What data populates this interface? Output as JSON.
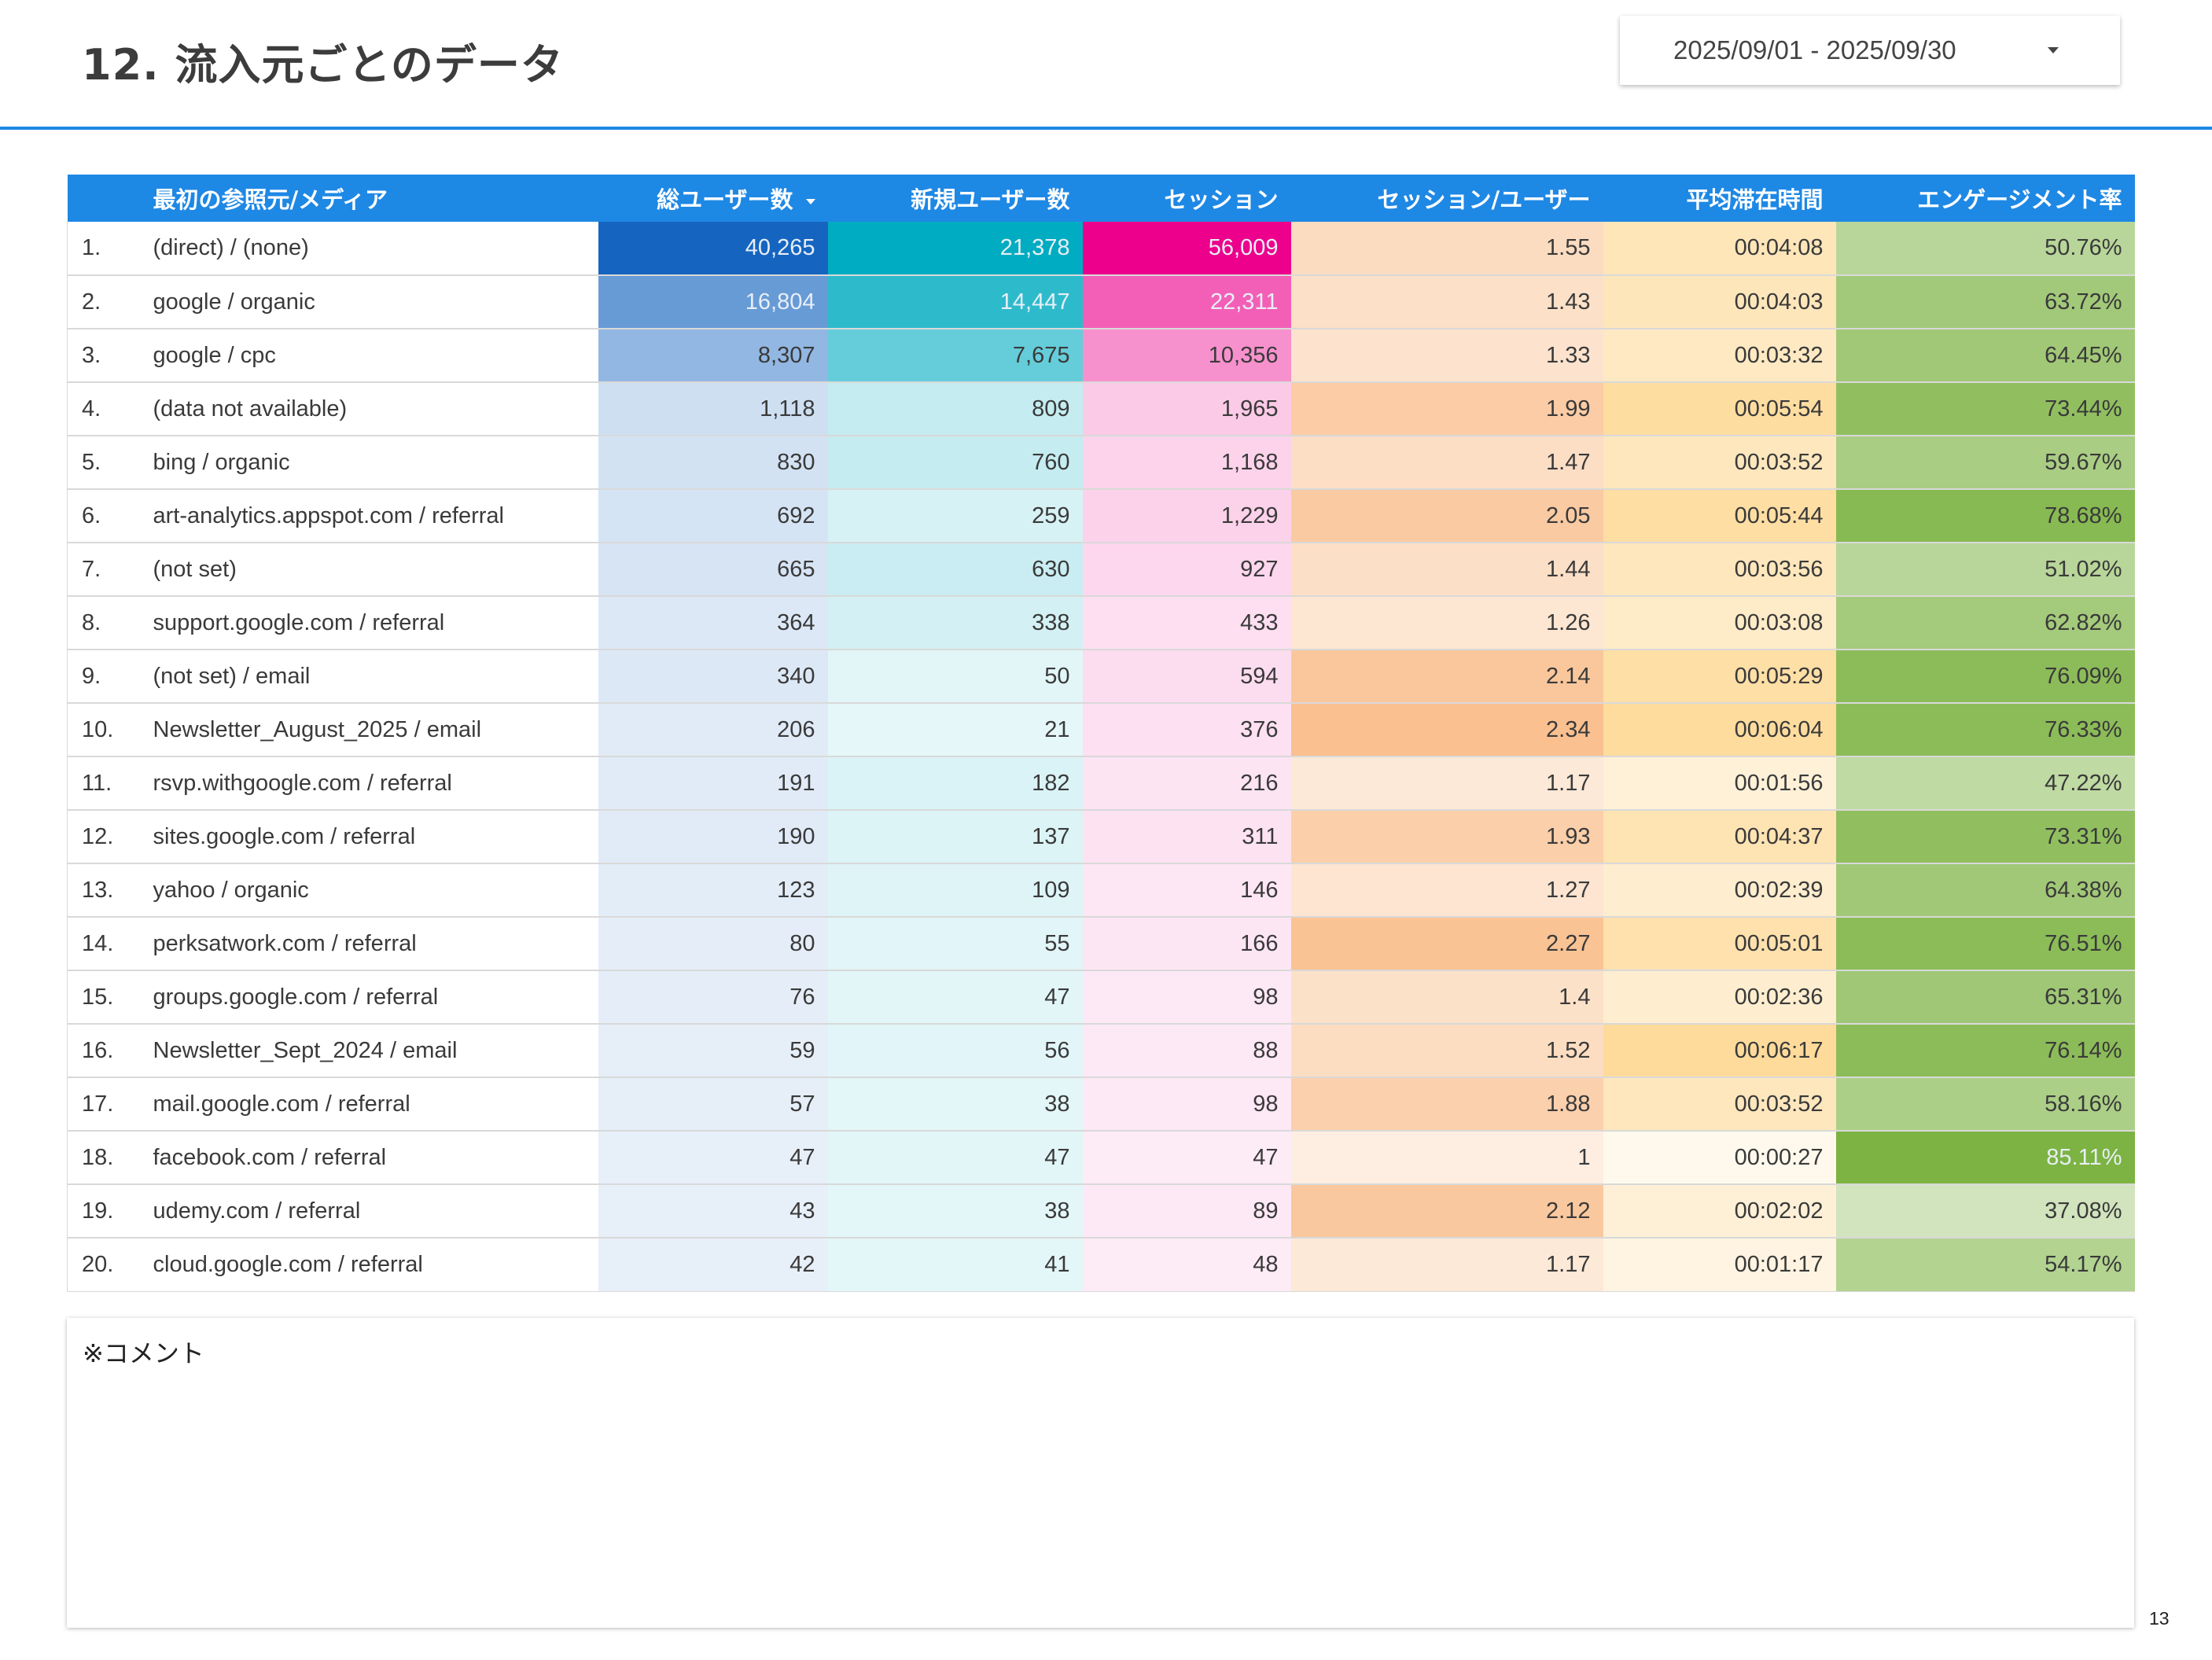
{
  "header": {
    "title": "12.  流入元ごとのデータ",
    "accent_color": "#1e88e5"
  },
  "date_range": {
    "value": "2025/09/01 - 2025/09/30",
    "icon": "chevron-down-icon"
  },
  "table": {
    "header_color": "#1e88e5",
    "sort": {
      "column": "総ユーザー数",
      "direction": "descending",
      "icon": "sort-down-icon"
    },
    "columns": [
      "最初の参照元/メディア",
      "総ユーザー数",
      "新規ユーザー数",
      "セッション",
      "セッション/ユーザー",
      "平均滞在時間",
      "エンゲージメント率"
    ],
    "heatmap_colors": {
      "total_users": "#1565c0",
      "new_users": "#00acc1",
      "sessions": "#ec008c",
      "sessions_per_user": "#f7a35c",
      "avg_time": "#fdc96a",
      "engagement_rate": "#7cb342"
    },
    "rows": [
      {
        "idx": "1.",
        "source": "(direct) / (none)",
        "total_users": "40,265",
        "new_users": "21,378",
        "sessions": "56,009",
        "sessions_per_user": "1.55",
        "avg_time": "00:04:08",
        "engagement_rate": "50.76%"
      },
      {
        "idx": "2.",
        "source": "google / organic",
        "total_users": "16,804",
        "new_users": "14,447",
        "sessions": "22,311",
        "sessions_per_user": "1.43",
        "avg_time": "00:04:03",
        "engagement_rate": "63.72%"
      },
      {
        "idx": "3.",
        "source": "google / cpc",
        "total_users": "8,307",
        "new_users": "7,675",
        "sessions": "10,356",
        "sessions_per_user": "1.33",
        "avg_time": "00:03:32",
        "engagement_rate": "64.45%"
      },
      {
        "idx": "4.",
        "source": "(data not available)",
        "total_users": "1,118",
        "new_users": "809",
        "sessions": "1,965",
        "sessions_per_user": "1.99",
        "avg_time": "00:05:54",
        "engagement_rate": "73.44%"
      },
      {
        "idx": "5.",
        "source": "bing / organic",
        "total_users": "830",
        "new_users": "760",
        "sessions": "1,168",
        "sessions_per_user": "1.47",
        "avg_time": "00:03:52",
        "engagement_rate": "59.67%"
      },
      {
        "idx": "6.",
        "source": "art-analytics.appspot.com / referral",
        "total_users": "692",
        "new_users": "259",
        "sessions": "1,229",
        "sessions_per_user": "2.05",
        "avg_time": "00:05:44",
        "engagement_rate": "78.68%"
      },
      {
        "idx": "7.",
        "source": "(not set)",
        "total_users": "665",
        "new_users": "630",
        "sessions": "927",
        "sessions_per_user": "1.44",
        "avg_time": "00:03:56",
        "engagement_rate": "51.02%"
      },
      {
        "idx": "8.",
        "source": "support.google.com / referral",
        "total_users": "364",
        "new_users": "338",
        "sessions": "433",
        "sessions_per_user": "1.26",
        "avg_time": "00:03:08",
        "engagement_rate": "62.82%"
      },
      {
        "idx": "9.",
        "source": "(not set) / email",
        "total_users": "340",
        "new_users": "50",
        "sessions": "594",
        "sessions_per_user": "2.14",
        "avg_time": "00:05:29",
        "engagement_rate": "76.09%"
      },
      {
        "idx": "10.",
        "source": "Newsletter_August_2025 / email",
        "total_users": "206",
        "new_users": "21",
        "sessions": "376",
        "sessions_per_user": "2.34",
        "avg_time": "00:06:04",
        "engagement_rate": "76.33%"
      },
      {
        "idx": "11.",
        "source": "rsvp.withgoogle.com / referral",
        "total_users": "191",
        "new_users": "182",
        "sessions": "216",
        "sessions_per_user": "1.17",
        "avg_time": "00:01:56",
        "engagement_rate": "47.22%"
      },
      {
        "idx": "12.",
        "source": "sites.google.com / referral",
        "total_users": "190",
        "new_users": "137",
        "sessions": "311",
        "sessions_per_user": "1.93",
        "avg_time": "00:04:37",
        "engagement_rate": "73.31%"
      },
      {
        "idx": "13.",
        "source": "yahoo / organic",
        "total_users": "123",
        "new_users": "109",
        "sessions": "146",
        "sessions_per_user": "1.27",
        "avg_time": "00:02:39",
        "engagement_rate": "64.38%"
      },
      {
        "idx": "14.",
        "source": "perksatwork.com / referral",
        "total_users": "80",
        "new_users": "55",
        "sessions": "166",
        "sessions_per_user": "2.27",
        "avg_time": "00:05:01",
        "engagement_rate": "76.51%"
      },
      {
        "idx": "15.",
        "source": "groups.google.com / referral",
        "total_users": "76",
        "new_users": "47",
        "sessions": "98",
        "sessions_per_user": "1.4",
        "avg_time": "00:02:36",
        "engagement_rate": "65.31%"
      },
      {
        "idx": "16.",
        "source": "Newsletter_Sept_2024 / email",
        "total_users": "59",
        "new_users": "56",
        "sessions": "88",
        "sessions_per_user": "1.52",
        "avg_time": "00:06:17",
        "engagement_rate": "76.14%"
      },
      {
        "idx": "17.",
        "source": "mail.google.com / referral",
        "total_users": "57",
        "new_users": "38",
        "sessions": "98",
        "sessions_per_user": "1.88",
        "avg_time": "00:03:52",
        "engagement_rate": "58.16%"
      },
      {
        "idx": "18.",
        "source": "facebook.com / referral",
        "total_users": "47",
        "new_users": "47",
        "sessions": "47",
        "sessions_per_user": "1",
        "avg_time": "00:00:27",
        "engagement_rate": "85.11%"
      },
      {
        "idx": "19.",
        "source": "udemy.com / referral",
        "total_users": "43",
        "new_users": "38",
        "sessions": "89",
        "sessions_per_user": "2.12",
        "avg_time": "00:02:02",
        "engagement_rate": "37.08%"
      },
      {
        "idx": "20.",
        "source": "cloud.google.com / referral",
        "total_users": "42",
        "new_users": "41",
        "sessions": "48",
        "sessions_per_user": "1.17",
        "avg_time": "00:01:17",
        "engagement_rate": "54.17%"
      }
    ]
  },
  "comment": {
    "label": "※コメント"
  },
  "page_number": "13"
}
